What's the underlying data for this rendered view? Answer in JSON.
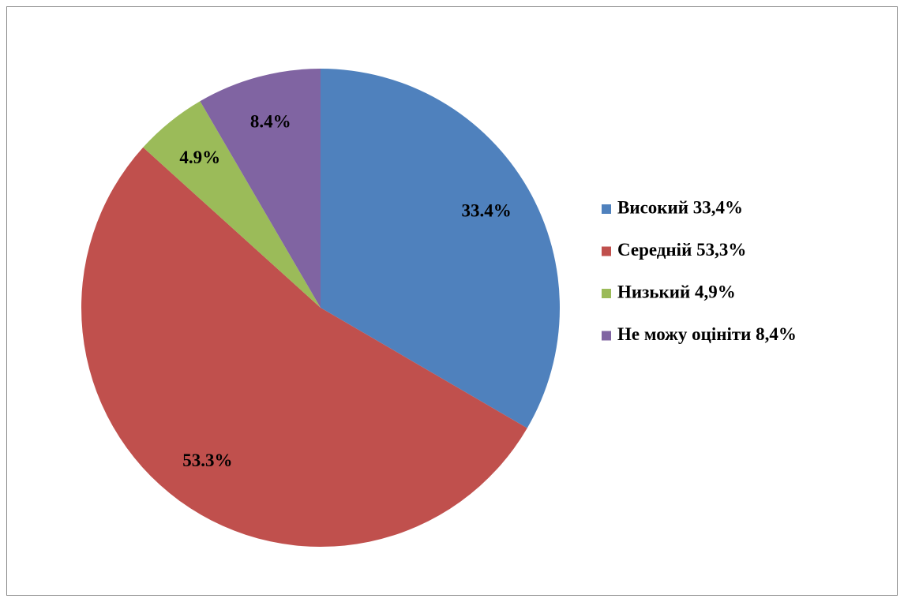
{
  "chart_data": {
    "type": "pie",
    "categories": [
      "Високий 33,4%",
      "Середній 53,3%",
      "Низький 4,9%",
      "Не можу оцінiти 8,4%"
    ],
    "values": [
      33.4,
      53.3,
      4.9,
      8.4
    ],
    "value_labels": [
      "33.4%",
      "53.3%",
      "4.9%",
      "8.4%"
    ],
    "colors": [
      "#4f81bd",
      "#c0504d",
      "#9bbb59",
      "#8064a2"
    ],
    "legend": "right"
  }
}
